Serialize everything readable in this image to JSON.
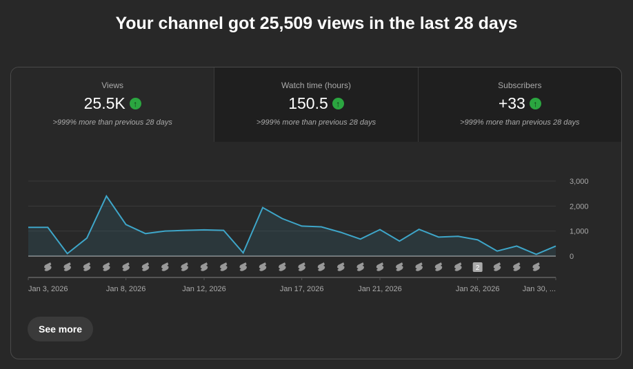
{
  "header": {
    "title": "Your channel got 25,509 views in the last 28 days"
  },
  "tabs": [
    {
      "label": "Views",
      "value": "25.5K",
      "comparison": ">999% more than previous 28 days",
      "trend": "up",
      "selected": true
    },
    {
      "label": "Watch time (hours)",
      "value": "150.5",
      "comparison": ">999% more than previous 28 days",
      "trend": "up",
      "selected": false
    },
    {
      "label": "Subscribers",
      "value": "+33",
      "comparison": ">999% more than previous 28 days",
      "trend": "up",
      "selected": false
    }
  ],
  "colors": {
    "line": "#3ea6c9",
    "trend_up": "#2ba640"
  },
  "chart_data": {
    "type": "area",
    "x": [
      "Jan 3",
      "Jan 4",
      "Jan 5",
      "Jan 6",
      "Jan 7",
      "Jan 8",
      "Jan 9",
      "Jan 10",
      "Jan 11",
      "Jan 12",
      "Jan 13",
      "Jan 14",
      "Jan 15",
      "Jan 16",
      "Jan 17",
      "Jan 18",
      "Jan 19",
      "Jan 20",
      "Jan 21",
      "Jan 22",
      "Jan 23",
      "Jan 24",
      "Jan 25",
      "Jan 26",
      "Jan 27",
      "Jan 28",
      "Jan 29",
      "Jan 30"
    ],
    "values": [
      1150,
      1150,
      100,
      720,
      2400,
      1260,
      900,
      1000,
      1030,
      1050,
      1030,
      130,
      1940,
      1500,
      1200,
      1170,
      950,
      680,
      1060,
      600,
      1070,
      760,
      790,
      650,
      200,
      400,
      70,
      400
    ],
    "ylim": [
      0,
      3000
    ],
    "yticks": [
      "3,000",
      "2,000",
      "1,000",
      "0"
    ],
    "xtick_labels": [
      {
        "label": "Jan 3, 2026",
        "index": 0
      },
      {
        "label": "Jan 8, 2026",
        "index": 5
      },
      {
        "label": "Jan 12, 2026",
        "index": 9
      },
      {
        "label": "Jan 17, 2026",
        "index": 14
      },
      {
        "label": "Jan 21, 2026",
        "index": 18
      },
      {
        "label": "Jan 26, 2026",
        "index": 23
      },
      {
        "label": "Jan 30, ...",
        "index": 27
      }
    ],
    "grid": true,
    "y_axis_side": "right",
    "upload_markers": [
      {
        "index": 1
      },
      {
        "index": 2
      },
      {
        "index": 3
      },
      {
        "index": 4
      },
      {
        "index": 5
      },
      {
        "index": 6
      },
      {
        "index": 7
      },
      {
        "index": 8
      },
      {
        "index": 9
      },
      {
        "index": 10
      },
      {
        "index": 11
      },
      {
        "index": 12
      },
      {
        "index": 13
      },
      {
        "index": 14
      },
      {
        "index": 15
      },
      {
        "index": 16
      },
      {
        "index": 17
      },
      {
        "index": 18
      },
      {
        "index": 19
      },
      {
        "index": 20
      },
      {
        "index": 21
      },
      {
        "index": 22
      },
      {
        "index": 23,
        "count": "2"
      },
      {
        "index": 24
      },
      {
        "index": 25
      },
      {
        "index": 26
      }
    ]
  },
  "actions": {
    "see_more": "See more"
  }
}
